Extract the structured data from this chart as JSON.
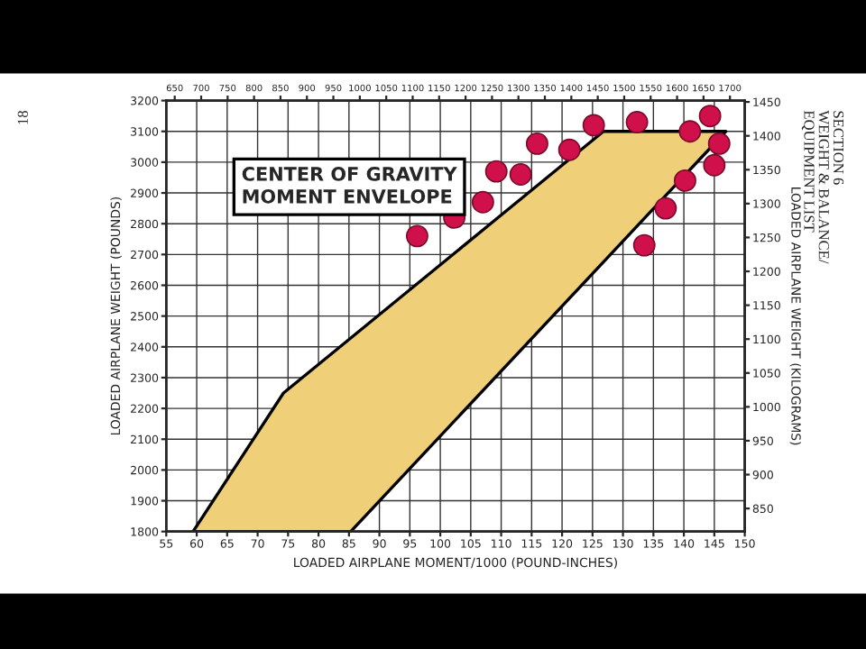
{
  "chart_data": {
    "type": "scatter",
    "title": "CENTER OF GRAVITY\nMOMENT ENVELOPE",
    "xlabel": "LOADED AIRPLANE MOMENT/1000 (POUND-INCHES)",
    "ylabel": "LOADED AIRPLANE WEIGHT (POUNDS)",
    "y2label": "LOADED AIRPLANE WEIGHT (KILOGRAMS)",
    "annotations": [
      "SECTION 6\nWEIGHT & BALANCE/\nEQUIPMENT LIST",
      "18"
    ],
    "series": [
      {
        "type": "area",
        "color": "#efcf78",
        "x": [
          59.4,
          74.25,
          126.8,
          146.9,
          85.3,
          59.4
        ],
        "values": [
          1800,
          2250,
          3100,
          3100,
          1800,
          1800
        ]
      },
      {
        "marker": "circle",
        "color": "#d0104a",
        "x": [
          96.2,
          102.3,
          107.0,
          109.2,
          113.2,
          115.9,
          121.2,
          125.2,
          132.3,
          133.5,
          137.0,
          140.2,
          141.0,
          144.3,
          145.8,
          145.0
        ],
        "values": [
          2760,
          2820,
          2870,
          2970,
          2960,
          3060,
          3040,
          3120,
          3130,
          2730,
          2850,
          2940,
          3100,
          3150,
          3060,
          2990
        ]
      }
    ],
    "xlim": [
      55,
      150
    ],
    "xticks": [
      55,
      60,
      65,
      70,
      75,
      80,
      85,
      90,
      95,
      100,
      105,
      110,
      115,
      120,
      125,
      130,
      135,
      140,
      145,
      150
    ],
    "ylim": [
      1800,
      3200
    ],
    "yticks": [
      1800,
      1900,
      2000,
      2100,
      2200,
      2300,
      2400,
      2500,
      2600,
      2700,
      2800,
      2900,
      3000,
      3100,
      3200
    ],
    "x2lim": [
      634,
      1728
    ],
    "x2ticks": [
      650,
      700,
      750,
      800,
      850,
      900,
      950,
      1000,
      1050,
      1100,
      1150,
      1200,
      1250,
      1300,
      1350,
      1400,
      1450,
      1500,
      1550,
      1600,
      1650,
      1700
    ],
    "y2lim": [
      816,
      1452
    ],
    "y2ticks": [
      850,
      900,
      950,
      1000,
      1050,
      1100,
      1150,
      1200,
      1250,
      1300,
      1350,
      1400,
      1450
    ],
    "grid": true,
    "legend": false
  }
}
